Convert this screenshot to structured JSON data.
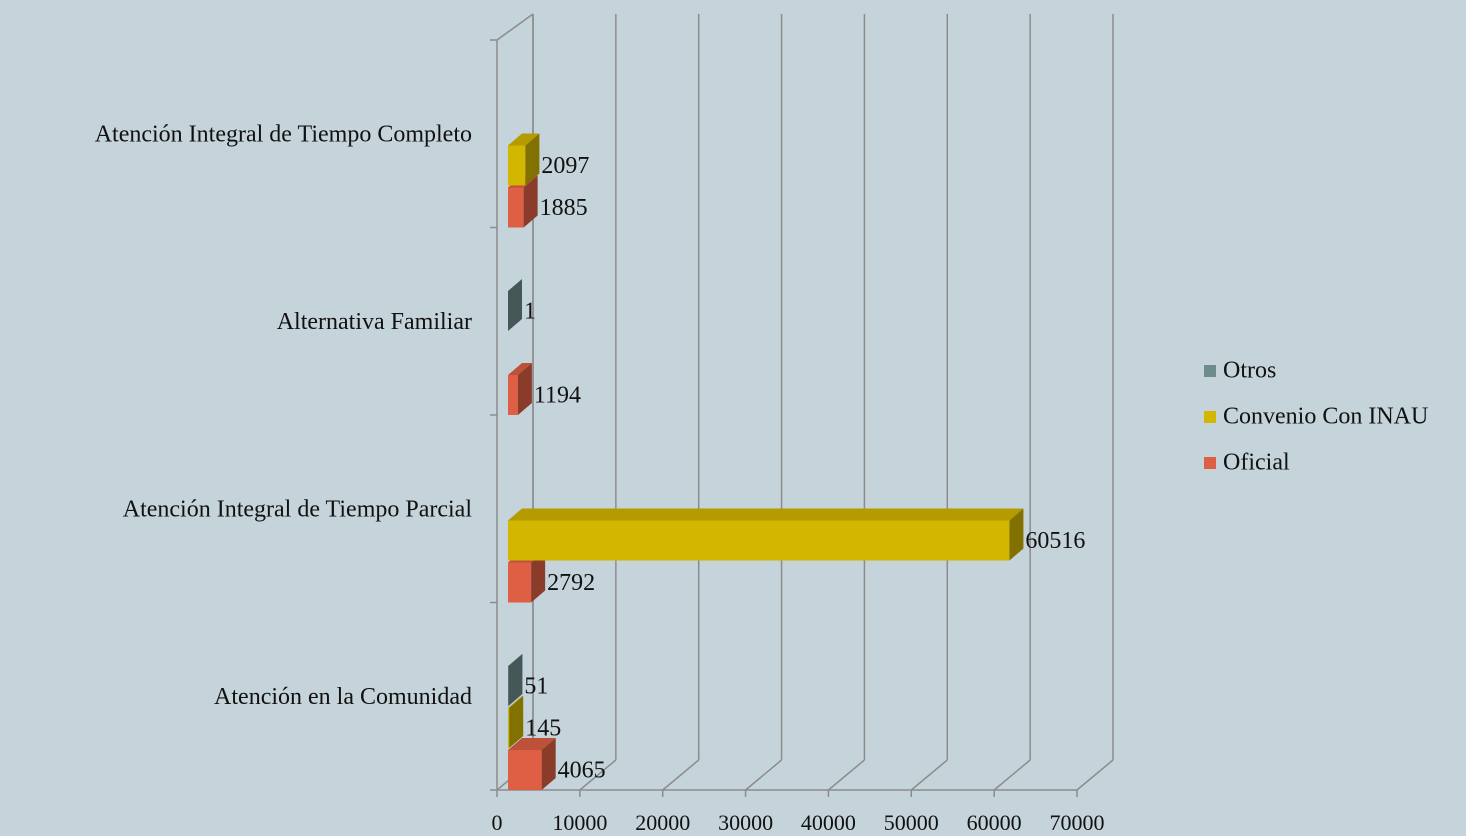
{
  "chart_data": {
    "type": "bar",
    "orientation": "horizontal",
    "categories": [
      "Atención en la Comunidad",
      "Atención Integral de Tiempo Parcial",
      "Alternativa Familiar",
      "Atención Integral de Tiempo Completo"
    ],
    "series": [
      {
        "name": "Oficial",
        "color": "#de5f43",
        "values": [
          4065,
          2792,
          1194,
          1885
        ]
      },
      {
        "name": "Convenio Con INAU",
        "color": "#d2b600",
        "values": [
          145,
          60516,
          null,
          2097
        ]
      },
      {
        "name": "Otros",
        "color": "#6f8c8c",
        "values": [
          51,
          null,
          1,
          null
        ]
      }
    ],
    "xlim": [
      0,
      70000
    ],
    "xticks": [
      0,
      10000,
      20000,
      30000,
      40000,
      50000,
      60000,
      70000
    ],
    "grid": true,
    "legend": "right"
  }
}
